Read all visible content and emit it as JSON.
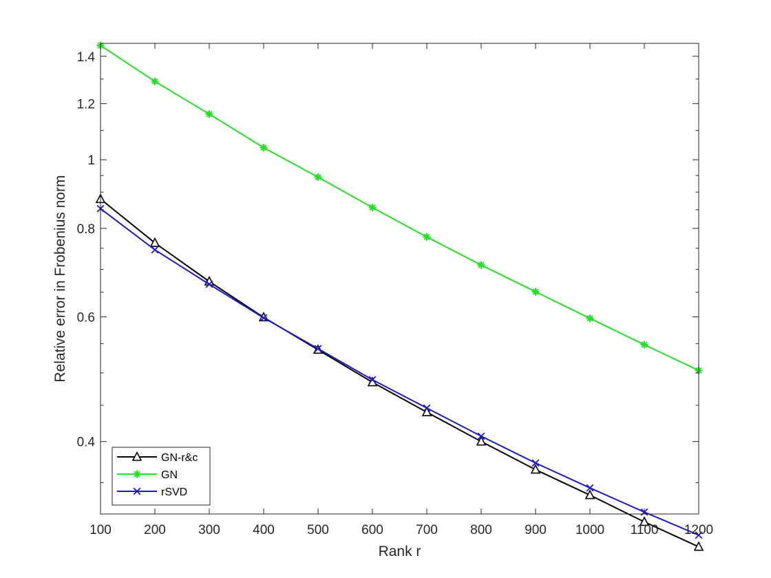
{
  "chart_data": {
    "type": "line",
    "xlabel": "Rank r",
    "ylabel": "Relative error in Frobenius norm",
    "x": [
      100,
      200,
      300,
      400,
      500,
      600,
      700,
      800,
      900,
      1000,
      1100,
      1200
    ],
    "xlim": [
      100,
      1200
    ],
    "xticks": [
      100,
      200,
      300,
      400,
      500,
      600,
      700,
      800,
      900,
      1000,
      1100,
      1200
    ],
    "ylim": [
      0.316,
      1.46
    ],
    "yscale": "log",
    "yticks": [
      0.4,
      0.6,
      0.8,
      1,
      1.2,
      1.4
    ],
    "ytick_labels": [
      "0.4",
      "0.6",
      "0.8",
      "1",
      "1.2",
      "1.4"
    ],
    "grid": false,
    "legend_position": "bottom-left",
    "series": [
      {
        "name": "GN-r&c",
        "color": "#000000",
        "marker": "triangle",
        "values": [
          0.88,
          0.763,
          0.673,
          0.599,
          0.539,
          0.485,
          0.44,
          0.4,
          0.365,
          0.336,
          0.308,
          0.284
        ]
      },
      {
        "name": "GN",
        "color": "#22e022",
        "marker": "asterisk",
        "values": [
          1.45,
          1.29,
          1.16,
          1.04,
          0.945,
          0.856,
          0.778,
          0.71,
          0.651,
          0.597,
          0.548,
          0.504
        ]
      },
      {
        "name": "rSVD",
        "color": "#1a1acc",
        "marker": "x",
        "values": [
          0.853,
          0.746,
          0.667,
          0.598,
          0.541,
          0.489,
          0.446,
          0.407,
          0.373,
          0.344,
          0.318,
          0.295
        ]
      }
    ]
  }
}
